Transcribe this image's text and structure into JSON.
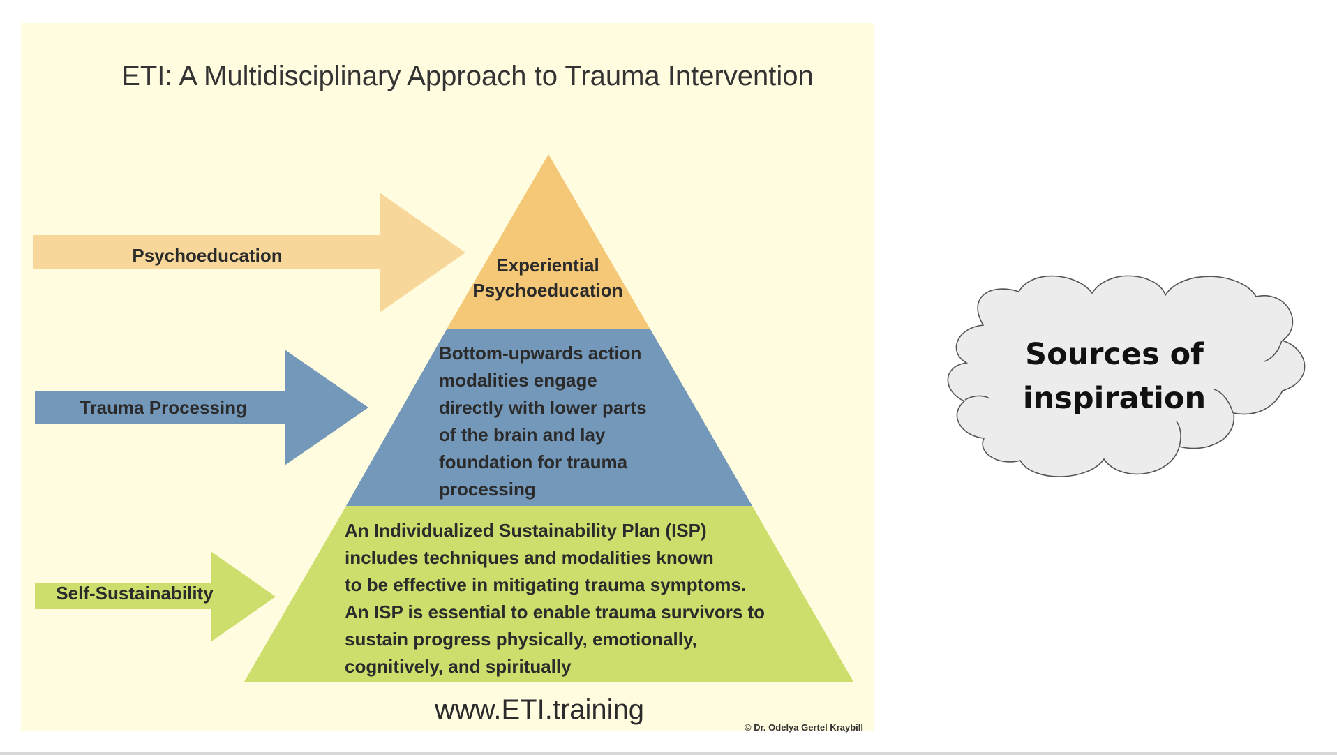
{
  "infographic": {
    "title": "ETI: A Multidisciplinary Approach to Trauma Intervention",
    "arrows": {
      "psychoeducation": "Psychoeducation",
      "trauma_processing": "Trauma Processing",
      "self_sustainability": "Self-Sustainability"
    },
    "pyramid": {
      "top": [
        "Experiential",
        "Psychoeducation"
      ],
      "middle": [
        "Bottom-upwards action",
        "modalities engage",
        "directly with lower parts",
        "of the brain and lay",
        "foundation for trauma",
        "processing"
      ],
      "bottom": [
        "An Individualized Sustainability Plan (ISP)",
        "includes techniques and modalities known",
        "to be effective in mitigating trauma symptoms.",
        "An ISP is essential to enable trauma survivors to",
        "sustain progress physically, emotionally,",
        "cognitively, and spiritually"
      ]
    },
    "website": "www.ETI.training",
    "copyright": "© Dr. Odelya Gertel Kraybill"
  },
  "cloud": {
    "line1": "Sources of",
    "line2": "inspiration"
  },
  "colors": {
    "panel_background": "#fffcdf",
    "orange": "#f5c878",
    "orange_arrow": "#f8d89a",
    "blue": "#7498ba",
    "green": "#cdde6c",
    "text_dark": "#2b2b2b",
    "cloud_fill": "#ececec",
    "cloud_stroke": "#555555"
  }
}
